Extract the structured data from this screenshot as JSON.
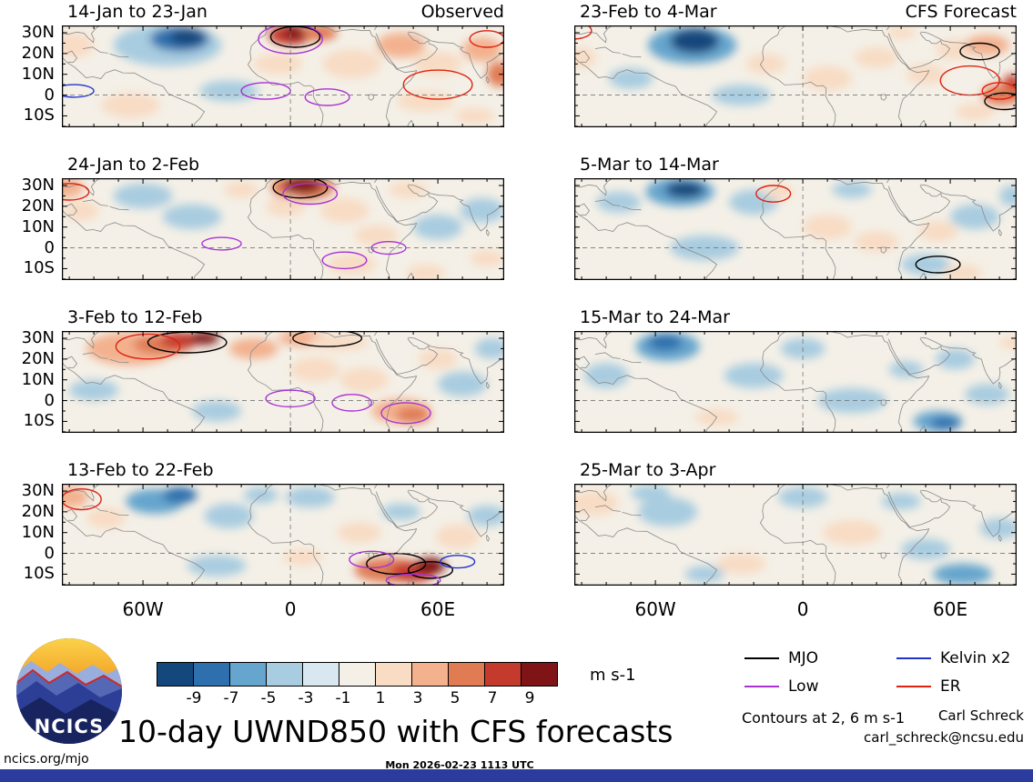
{
  "footer": {
    "title": "10-day UWND850 with CFS forecasts",
    "contours_note": "Contours at 2, 6 m s-1",
    "author": "Carl Schreck",
    "email": "carl_schreck@ncsu.edu",
    "site": "ncics.org/mjo",
    "timestamp": "Mon 2026-02-23 1113 UTC",
    "logo_text": "NCICS",
    "bar_color": "#2c3b9e"
  },
  "chart_data": {
    "type": "heatmap",
    "subtype": "filled-contour-anomaly-maps",
    "grid": {
      "rows": 4,
      "cols": 2,
      "left_column_label": "Observed",
      "right_column_label": "CFS Forecast"
    },
    "axes": {
      "y_ticks": [
        "30N",
        "20N",
        "10N",
        "0",
        "10S"
      ],
      "y_tick_vals": [
        30,
        20,
        10,
        0,
        -10
      ],
      "x_ticks": [
        "60W",
        "0",
        "60E"
      ],
      "x_tick_vals": [
        -60,
        0,
        60
      ],
      "lon_range": [
        -93,
        87
      ],
      "lat_range": [
        -15.5,
        33.5
      ]
    },
    "colorbar": {
      "values": [
        -9,
        -7,
        -5,
        -3,
        -1,
        1,
        3,
        5,
        7,
        9
      ],
      "colors": [
        "#14477c",
        "#2e6fad",
        "#66a5cd",
        "#a8cce0",
        "#d9e7f0",
        "#f4f0e7",
        "#f8dcc4",
        "#f3b18e",
        "#e07b54",
        "#c43a2d",
        "#7e1416"
      ],
      "units": "m s-1"
    },
    "contour_colors": {
      "MJO": "#000000",
      "Low": "#a832d6",
      "Kelvin": "#2233cc",
      "ER": "#dd2211"
    },
    "legend": [
      {
        "label": "MJO",
        "color": "#000000"
      },
      {
        "label": "Kelvin x2",
        "color": "#2233cc"
      },
      {
        "label": "Low",
        "color": "#a832d6"
      },
      {
        "label": "ER",
        "color": "#dd2211"
      }
    ],
    "panels": [
      {
        "title": "14-Jan to 23-Jan",
        "corner_label": "Observed",
        "blobs": [
          [
            -50,
            24,
            22,
            10,
            -3
          ],
          [
            -45,
            27,
            12,
            6,
            -7
          ],
          [
            -42,
            28,
            7,
            4,
            -9
          ],
          [
            -88,
            24,
            8,
            6,
            3
          ],
          [
            -65,
            -5,
            12,
            6,
            3
          ],
          [
            -25,
            2,
            12,
            5,
            -3
          ],
          [
            -5,
            15,
            10,
            5,
            3
          ],
          [
            0,
            29,
            9,
            5,
            9
          ],
          [
            2,
            30,
            5,
            3,
            11
          ],
          [
            12,
            30,
            7,
            4,
            7
          ],
          [
            25,
            15,
            12,
            7,
            3
          ],
          [
            45,
            24,
            10,
            6,
            5
          ],
          [
            60,
            15,
            10,
            6,
            3
          ],
          [
            78,
            22,
            8,
            6,
            5
          ],
          [
            85,
            10,
            5,
            6,
            7
          ],
          [
            55,
            -3,
            12,
            5,
            3
          ],
          [
            75,
            -10,
            8,
            4,
            3
          ]
        ],
        "contours": [
          [
            2,
            28,
            10,
            5,
            "MJO"
          ],
          [
            0,
            27,
            13,
            7,
            "Low"
          ],
          [
            -10,
            2,
            10,
            4,
            "Low"
          ],
          [
            15,
            -1,
            9,
            4,
            "Low"
          ],
          [
            -88,
            2,
            8,
            3,
            "Kelvin"
          ],
          [
            60,
            5,
            14,
            7,
            "ER"
          ],
          [
            80,
            27,
            7,
            4,
            "ER"
          ]
        ]
      },
      {
        "title": "24-Jan to 2-Feb",
        "blobs": [
          [
            -93,
            29,
            9,
            5,
            5
          ],
          [
            -85,
            18,
            7,
            5,
            3
          ],
          [
            -60,
            25,
            12,
            6,
            -3
          ],
          [
            -40,
            15,
            12,
            6,
            -3
          ],
          [
            -20,
            28,
            7,
            4,
            3
          ],
          [
            5,
            29,
            13,
            6,
            7
          ],
          [
            5,
            30,
            8,
            4,
            11
          ],
          [
            -2,
            20,
            8,
            5,
            3
          ],
          [
            22,
            18,
            10,
            6,
            3
          ],
          [
            35,
            6,
            9,
            5,
            3
          ],
          [
            48,
            28,
            8,
            4,
            3
          ],
          [
            60,
            10,
            10,
            6,
            -3
          ],
          [
            78,
            18,
            9,
            6,
            -3
          ],
          [
            25,
            -8,
            10,
            5,
            3
          ],
          [
            55,
            -12,
            8,
            4,
            3
          ],
          [
            80,
            -5,
            7,
            4,
            3
          ]
        ],
        "contours": [
          [
            4,
            29,
            11,
            5,
            "MJO"
          ],
          [
            8,
            26,
            11,
            5,
            "Low"
          ],
          [
            -28,
            2,
            8,
            3,
            "Low"
          ],
          [
            22,
            -6,
            9,
            4,
            "Low"
          ],
          [
            40,
            0,
            7,
            3,
            "Low"
          ],
          [
            -90,
            27,
            8,
            4,
            "ER"
          ]
        ]
      },
      {
        "title": "3-Feb to 12-Feb",
        "blobs": [
          [
            -65,
            25,
            18,
            8,
            5
          ],
          [
            -52,
            27,
            12,
            5,
            7
          ],
          [
            -45,
            29,
            8,
            4,
            9
          ],
          [
            -35,
            30,
            6,
            3,
            11
          ],
          [
            -15,
            25,
            10,
            5,
            5
          ],
          [
            5,
            30,
            10,
            4,
            5
          ],
          [
            20,
            28,
            12,
            4,
            3
          ],
          [
            -80,
            5,
            10,
            5,
            -3
          ],
          [
            -30,
            -5,
            10,
            5,
            -3
          ],
          [
            10,
            15,
            10,
            6,
            3
          ],
          [
            30,
            10,
            10,
            6,
            3
          ],
          [
            45,
            -5,
            12,
            6,
            5
          ],
          [
            50,
            -7,
            7,
            4,
            7
          ],
          [
            70,
            8,
            10,
            6,
            -3
          ],
          [
            82,
            25,
            7,
            5,
            -3
          ],
          [
            60,
            20,
            8,
            5,
            3
          ]
        ],
        "contours": [
          [
            -42,
            28,
            16,
            5,
            "MJO"
          ],
          [
            15,
            30,
            14,
            4,
            "MJO"
          ],
          [
            -58,
            26,
            13,
            6,
            "ER"
          ],
          [
            0,
            1,
            10,
            4,
            "Low"
          ],
          [
            25,
            -1,
            8,
            4,
            "Low"
          ],
          [
            47,
            -6,
            10,
            5,
            "Low"
          ]
        ]
      },
      {
        "title": "13-Feb to 22-Feb",
        "blobs": [
          [
            -90,
            27,
            8,
            5,
            5
          ],
          [
            -75,
            17,
            8,
            5,
            3
          ],
          [
            -55,
            25,
            12,
            6,
            -5
          ],
          [
            -45,
            28,
            7,
            4,
            -7
          ],
          [
            -25,
            18,
            10,
            6,
            -3
          ],
          [
            -12,
            28,
            7,
            4,
            -3
          ],
          [
            8,
            27,
            10,
            5,
            -3
          ],
          [
            -30,
            -6,
            12,
            5,
            -3
          ],
          [
            5,
            -2,
            8,
            4,
            3
          ],
          [
            28,
            10,
            9,
            5,
            3
          ],
          [
            40,
            -8,
            14,
            6,
            7
          ],
          [
            50,
            -9,
            9,
            5,
            9
          ],
          [
            57,
            -6,
            6,
            4,
            11
          ],
          [
            68,
            8,
            9,
            6,
            3
          ],
          [
            80,
            18,
            8,
            5,
            -3
          ],
          [
            45,
            20,
            8,
            4,
            -3
          ]
        ],
        "contours": [
          [
            -85,
            26,
            8,
            5,
            "ER"
          ],
          [
            43,
            -5,
            12,
            5,
            "MJO"
          ],
          [
            57,
            -8,
            9,
            4,
            "MJO"
          ],
          [
            33,
            -3,
            9,
            4,
            "Low"
          ],
          [
            50,
            -13,
            11,
            3,
            "Low"
          ],
          [
            68,
            -4,
            7,
            3,
            "Kelvin"
          ]
        ]
      },
      {
        "title": "23-Feb to 4-Mar",
        "corner_label": "CFS Forecast",
        "blobs": [
          [
            -45,
            24,
            18,
            9,
            -5
          ],
          [
            -44,
            26,
            10,
            6,
            -9
          ],
          [
            -70,
            8,
            9,
            5,
            -3
          ],
          [
            -90,
            18,
            6,
            5,
            3
          ],
          [
            -15,
            15,
            8,
            5,
            3
          ],
          [
            10,
            8,
            10,
            6,
            3
          ],
          [
            30,
            18,
            9,
            5,
            3
          ],
          [
            50,
            10,
            8,
            5,
            3
          ],
          [
            62,
            22,
            8,
            5,
            3
          ],
          [
            75,
            24,
            9,
            5,
            5
          ],
          [
            85,
            3,
            4,
            7,
            9
          ],
          [
            80,
            0,
            7,
            5,
            7
          ],
          [
            70,
            -8,
            8,
            4,
            3
          ],
          [
            -25,
            0,
            12,
            5,
            -3
          ],
          [
            40,
            30,
            6,
            3,
            3
          ]
        ],
        "contours": [
          [
            -93,
            31,
            7,
            4,
            "ER"
          ],
          [
            68,
            7,
            12,
            7,
            "ER"
          ],
          [
            80,
            2,
            7,
            4,
            "ER"
          ],
          [
            72,
            21,
            8,
            4,
            "MJO"
          ],
          [
            82,
            -3,
            8,
            4,
            "MJO"
          ]
        ]
      },
      {
        "title": "5-Mar to 14-Mar",
        "blobs": [
          [
            -50,
            27,
            14,
            7,
            -5
          ],
          [
            -48,
            28,
            8,
            4,
            -9
          ],
          [
            -75,
            22,
            9,
            5,
            -3
          ],
          [
            -20,
            22,
            10,
            6,
            -3
          ],
          [
            -10,
            27,
            6,
            4,
            3
          ],
          [
            -40,
            0,
            14,
            6,
            -3
          ],
          [
            10,
            10,
            10,
            6,
            3
          ],
          [
            30,
            3,
            9,
            5,
            3
          ],
          [
            55,
            8,
            8,
            5,
            3
          ],
          [
            70,
            15,
            10,
            6,
            -3
          ],
          [
            50,
            -8,
            10,
            5,
            -3
          ],
          [
            85,
            25,
            5,
            5,
            -3
          ],
          [
            20,
            28,
            8,
            4,
            -3
          ],
          [
            65,
            -12,
            8,
            4,
            3
          ]
        ],
        "contours": [
          [
            -12,
            26,
            7,
            4,
            "ER"
          ],
          [
            55,
            -8,
            9,
            4,
            "MJO"
          ]
        ]
      },
      {
        "title": "15-Mar to 24-Mar",
        "blobs": [
          [
            -55,
            26,
            13,
            7,
            -5
          ],
          [
            -56,
            28,
            7,
            4,
            -7
          ],
          [
            -80,
            12,
            9,
            6,
            -3
          ],
          [
            -20,
            12,
            12,
            6,
            -3
          ],
          [
            0,
            25,
            9,
            5,
            -3
          ],
          [
            20,
            0,
            14,
            6,
            -3
          ],
          [
            -35,
            -8,
            9,
            4,
            3
          ],
          [
            55,
            -10,
            10,
            5,
            -5
          ],
          [
            58,
            -11,
            6,
            3,
            -7
          ],
          [
            75,
            3,
            9,
            5,
            -3
          ],
          [
            62,
            20,
            8,
            5,
            -3
          ],
          [
            42,
            15,
            7,
            4,
            -3
          ],
          [
            85,
            28,
            5,
            3,
            3
          ]
        ],
        "contours": []
      },
      {
        "title": "25-Mar to 3-Apr",
        "blobs": [
          [
            -85,
            24,
            10,
            6,
            3
          ],
          [
            -55,
            20,
            12,
            7,
            -3
          ],
          [
            -62,
            29,
            8,
            4,
            -3
          ],
          [
            0,
            27,
            10,
            5,
            -3
          ],
          [
            20,
            10,
            12,
            6,
            3
          ],
          [
            -25,
            -5,
            10,
            5,
            3
          ],
          [
            50,
            2,
            10,
            5,
            -3
          ],
          [
            65,
            -10,
            12,
            5,
            -5
          ],
          [
            80,
            12,
            8,
            5,
            -3
          ],
          [
            40,
            25,
            8,
            4,
            -3
          ],
          [
            -40,
            -10,
            8,
            4,
            -3
          ]
        ],
        "contours": []
      }
    ]
  }
}
